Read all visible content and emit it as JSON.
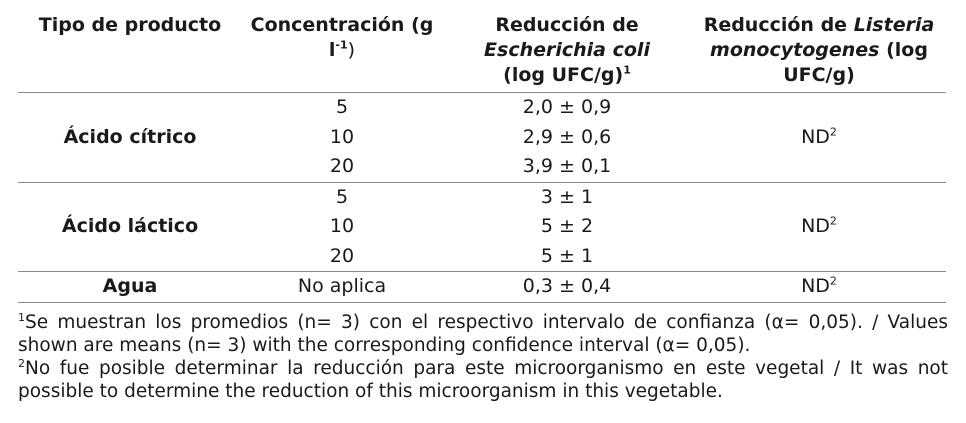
{
  "table": {
    "headers": {
      "product": "Tipo de producto",
      "concentration": "Concentración (g l",
      "concentration_exp": "-1",
      "concentration_close": ")",
      "ecoli_pre": "Reducción de",
      "ecoli_italic": "Escherichia coli",
      "ecoli_post": "(log UFC/g)",
      "ecoli_sup": "1",
      "listeria_pre": "Reducción de",
      "listeria_italic": "Listeria monocytogenes",
      "listeria_post": "(log UFC/g)"
    },
    "citric": {
      "product": "Ácido cítrico",
      "rows": [
        {
          "concentration": "5",
          "ecoli": "2,0 ± 0,9"
        },
        {
          "concentration": "10",
          "ecoli": "2,9 ± 0,6"
        },
        {
          "concentration": "20",
          "ecoli": "3,9 ± 0,1"
        }
      ],
      "listeria": "ND",
      "listeria_sup": "2"
    },
    "lactic": {
      "product": "Ácido láctico",
      "rows": [
        {
          "concentration": "5",
          "ecoli": "3 ± 1"
        },
        {
          "concentration": "10",
          "ecoli": "5 ± 2"
        },
        {
          "concentration": "20",
          "ecoli": "5 ± 1"
        }
      ],
      "listeria": "ND",
      "listeria_sup": "2"
    },
    "water": {
      "product": "Agua",
      "concentration": "No aplica",
      "ecoli": "0,3 ± 0,4",
      "listeria": "ND",
      "listeria_sup": "2"
    }
  },
  "notes": {
    "note1_mark": "1",
    "note1": "Se muestran los promedios (n= 3) con el respectivo intervalo de confianza (α= 0,05). / Values shown are means (n= 3) with the corresponding confidence interval (α= 0,05).",
    "note2_mark": "2",
    "note2": "No fue posible determinar la reducción para este microorganismo en este vegetal / It was not possible to determine the reduction of this microorganism in this vegetable."
  }
}
